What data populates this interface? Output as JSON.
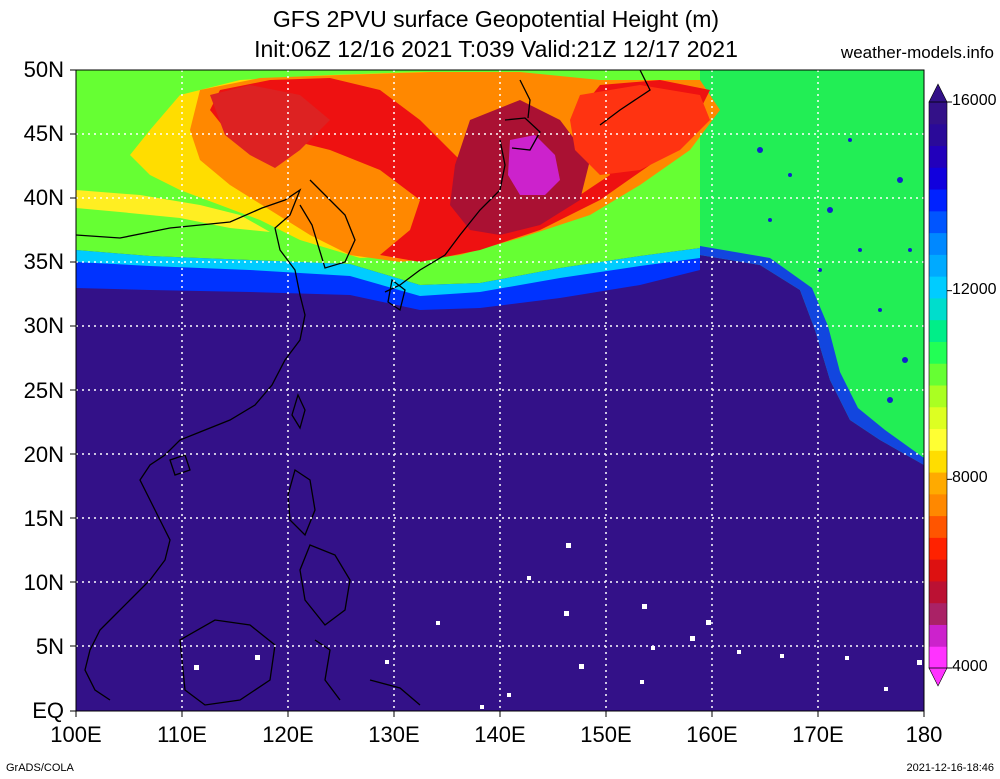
{
  "header": {
    "title_line1": "GFS 2PVU surface Geopotential Height (m)",
    "title_line2": "Init:06Z 12/16 2021 T:039 Valid:21Z 12/17 2021",
    "credit": "weather-models.info"
  },
  "map": {
    "lat_labels": [
      "50N",
      "45N",
      "40N",
      "35N",
      "30N",
      "25N",
      "20N",
      "15N",
      "10N",
      "5N",
      "EQ"
    ],
    "lon_labels": [
      "100E",
      "110E",
      "120E",
      "130E",
      "140E",
      "150E",
      "160E",
      "170E",
      "180"
    ],
    "lat_range": [
      0,
      50
    ],
    "lon_range": [
      100,
      180
    ],
    "gridlines": true
  },
  "colorbar": {
    "labels": [
      "16000",
      "12000",
      "8000",
      "4000"
    ],
    "min": 4000,
    "max": 16000,
    "colors": [
      "#ff33ff",
      "#cc22cc",
      "#aa2266",
      "#bb1133",
      "#dd1111",
      "#ff2200",
      "#ff5500",
      "#ff8800",
      "#ffaa00",
      "#ffdd00",
      "#ffff33",
      "#ddff22",
      "#aaff22",
      "#66ff33",
      "#22ff55",
      "#00ee88",
      "#00ddcc",
      "#00ccff",
      "#00aaff",
      "#0088ff",
      "#0055ff",
      "#0022ff",
      "#1100dd",
      "#2200bb",
      "#2a0a99",
      "#331188"
    ]
  },
  "footer": {
    "left": "GrADS/COLA",
    "right": "2021-12-16-18:46"
  }
}
